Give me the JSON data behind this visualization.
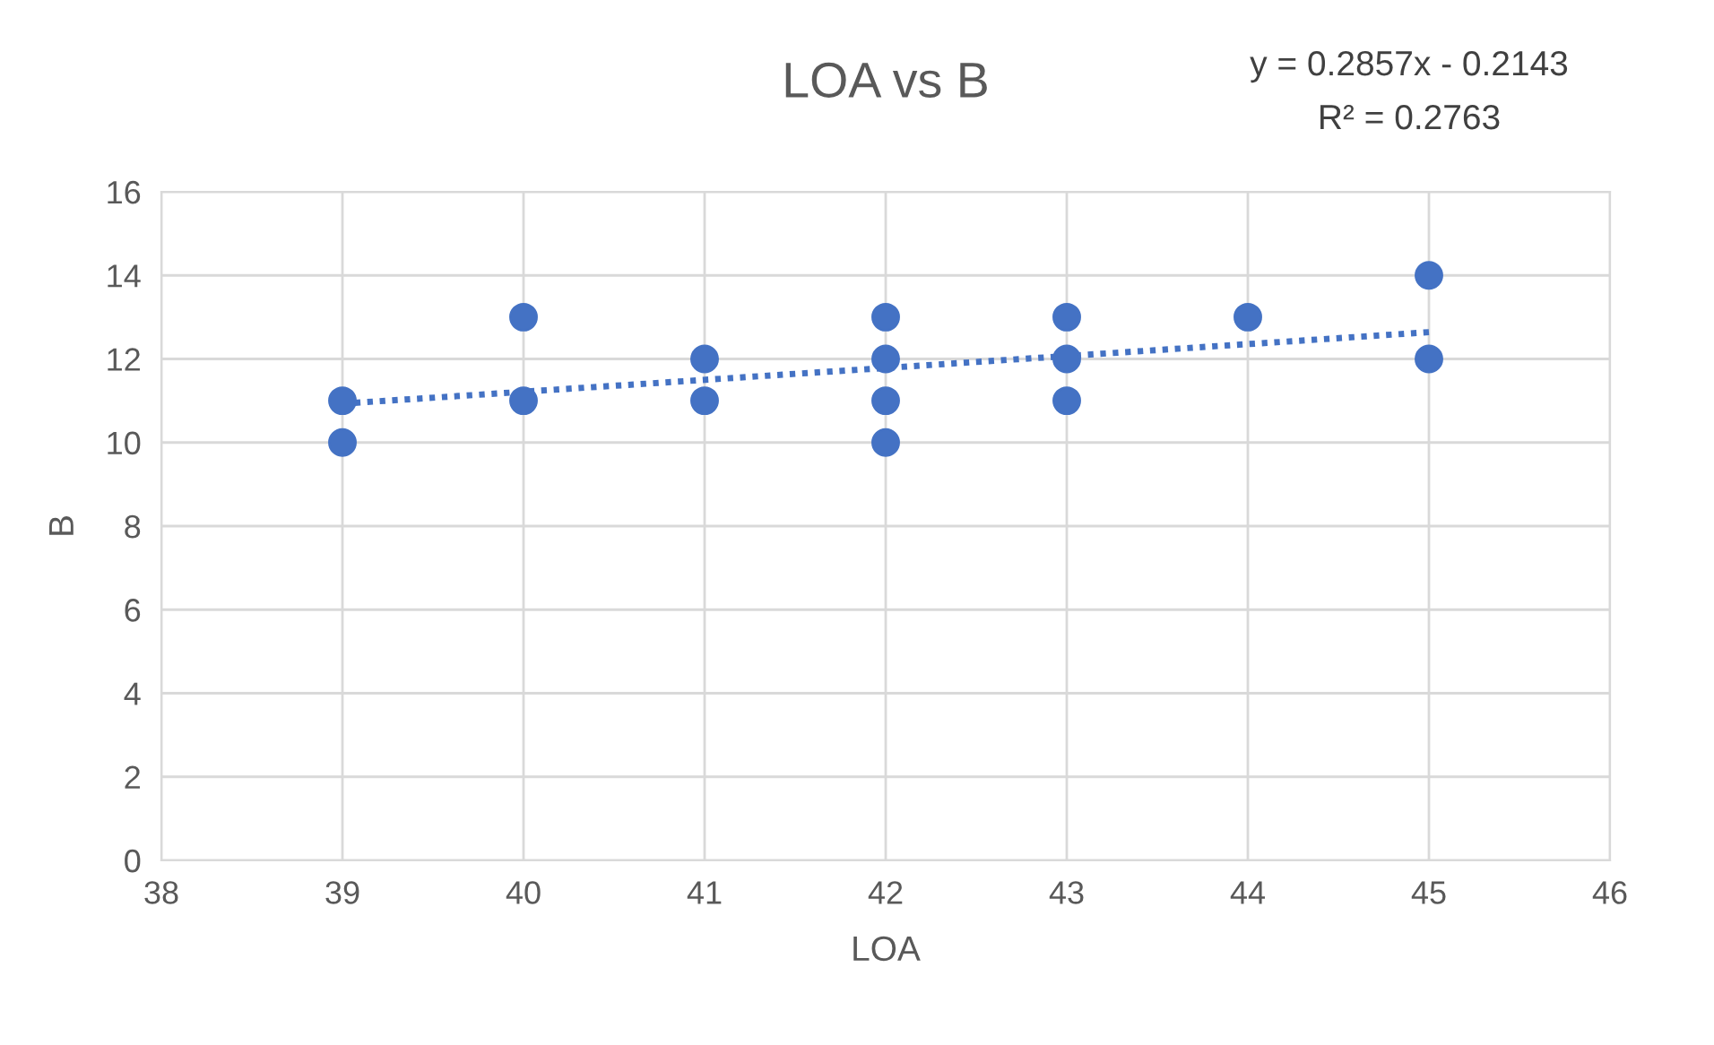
{
  "chart_data": {
    "type": "scatter",
    "title": "LOA vs B",
    "xlabel": "LOA",
    "ylabel": "B",
    "xlim": [
      38,
      46
    ],
    "xticks": [
      38,
      39,
      40,
      41,
      42,
      43,
      44,
      45,
      46
    ],
    "ylim": [
      0,
      16
    ],
    "yticks": [
      0,
      2,
      4,
      6,
      8,
      10,
      12,
      14,
      16
    ],
    "grid": true,
    "legend": false,
    "marker": "circle",
    "annotations": [
      "y = 0.2857x - 0.2143",
      "R² = 0.2763"
    ],
    "series": [
      {
        "color": "#4472c4",
        "x": [
          39,
          39,
          40,
          40,
          41,
          41,
          42,
          42,
          42,
          42,
          43,
          43,
          43,
          44,
          45,
          45
        ],
        "values": [
          11,
          10,
          13,
          11,
          12,
          11,
          13,
          12,
          11,
          10,
          13,
          12,
          11,
          13,
          14,
          12
        ]
      },
      {
        "type": "line",
        "color": "#4472c4",
        "line_style": "dotted",
        "marker": "none",
        "x": [
          39,
          45
        ],
        "values": [
          10.93,
          12.64
        ]
      }
    ]
  }
}
